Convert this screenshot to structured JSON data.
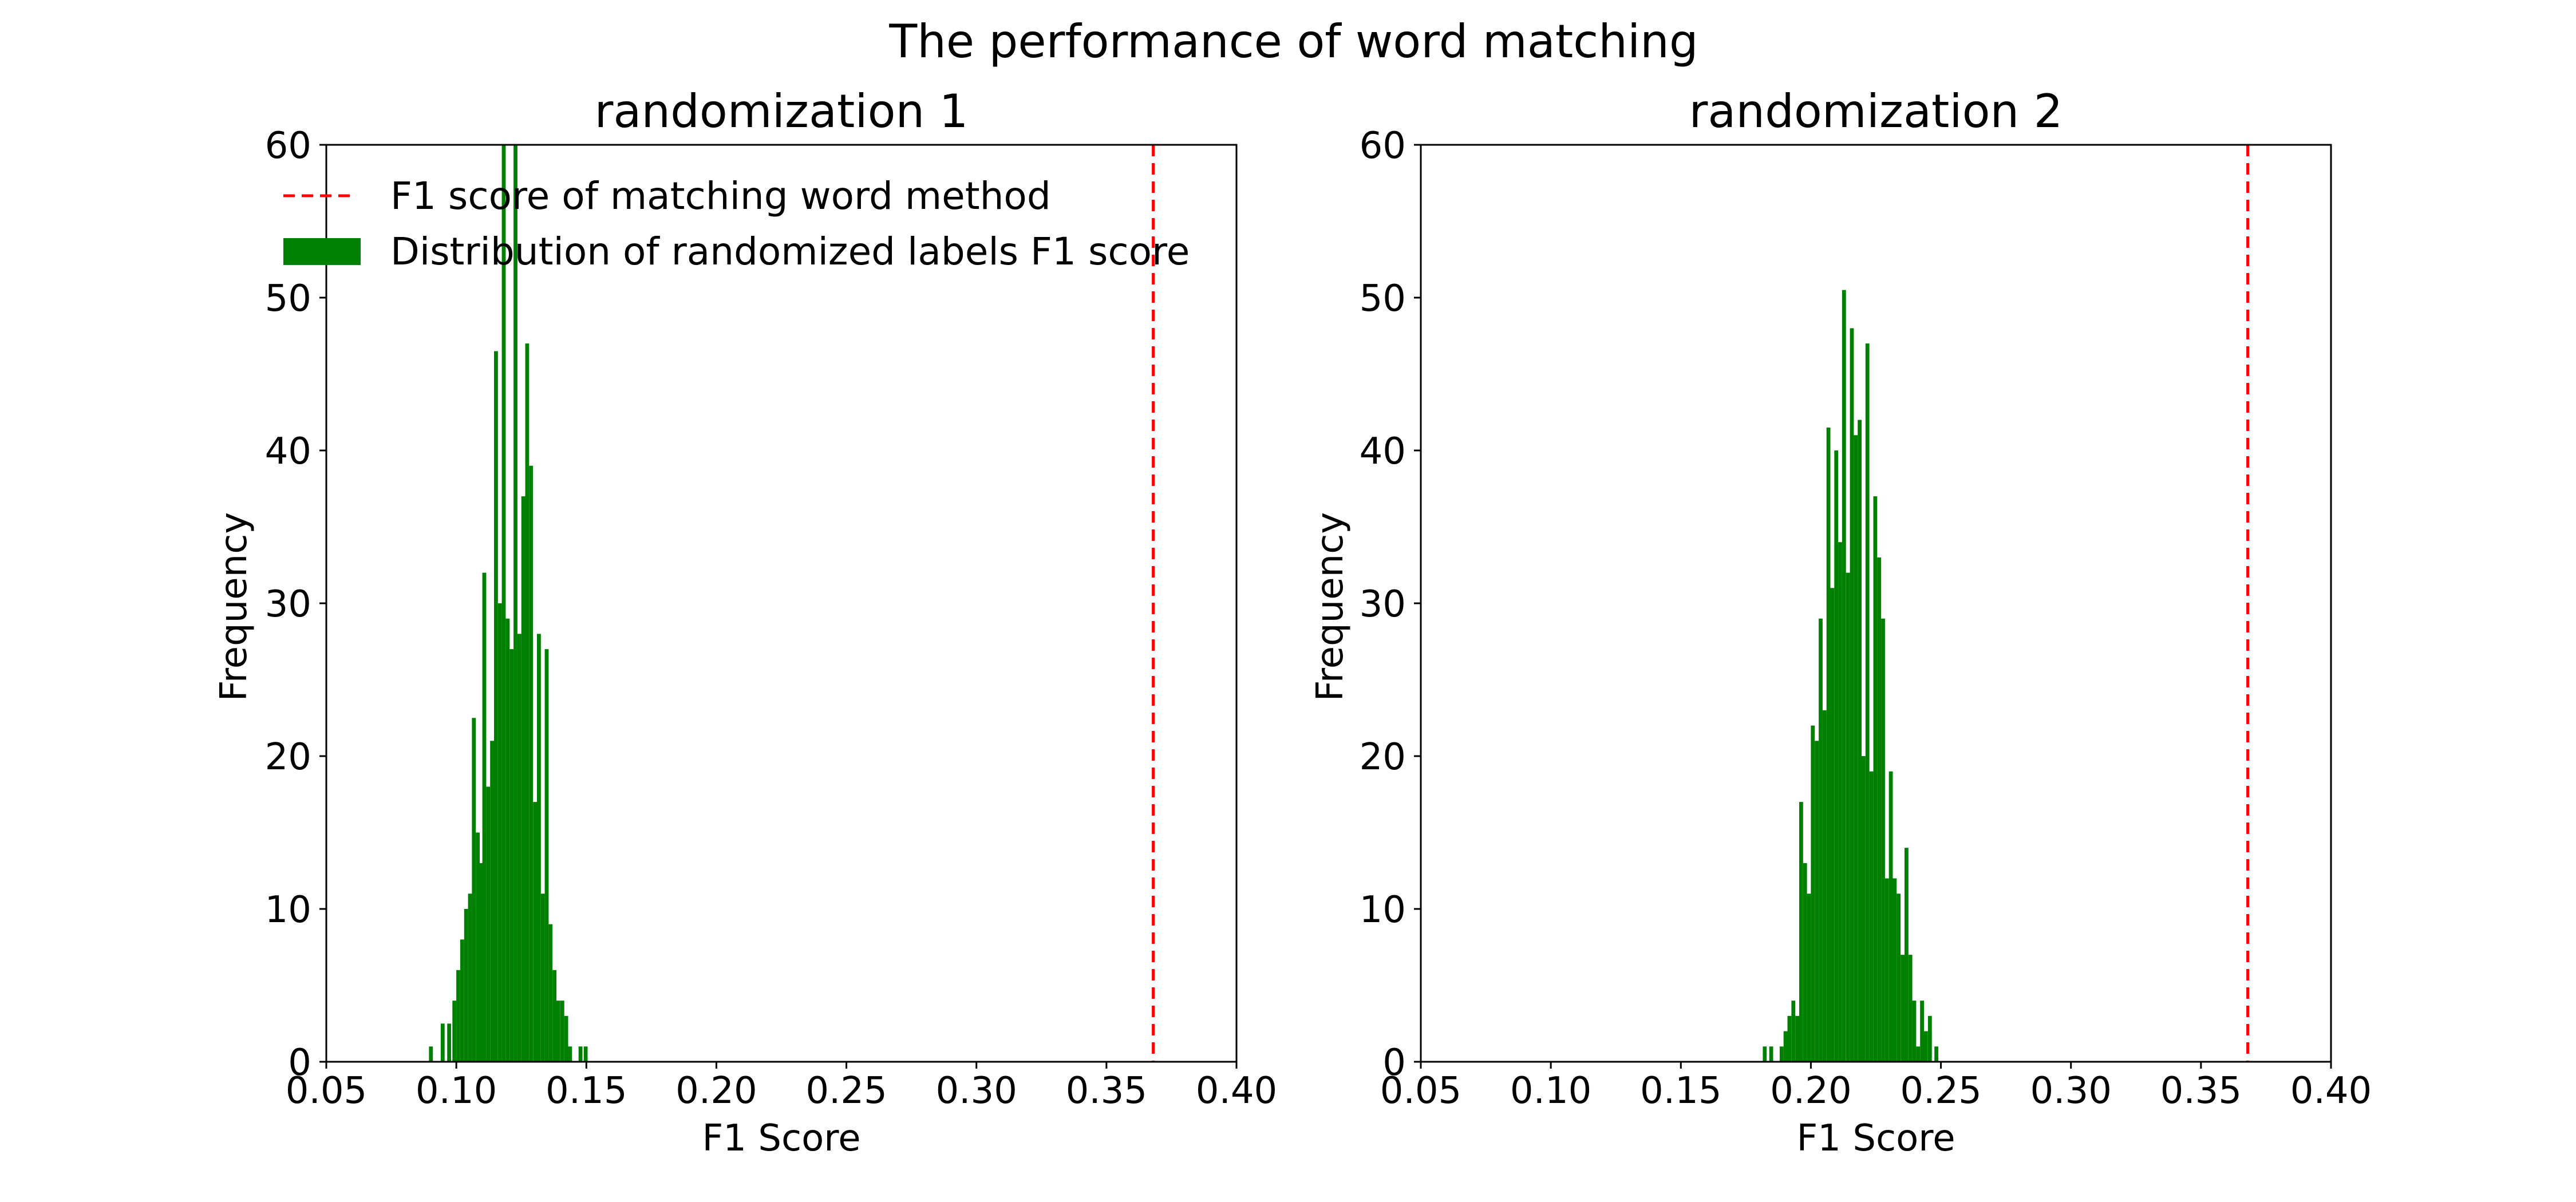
{
  "figure_title": "The performance of word matching",
  "colors": {
    "bars": "#008000",
    "threshold": "#ff0000",
    "axes": "#000000"
  },
  "legend": {
    "location": "upper-left",
    "entries": [
      {
        "label": "F1 score of matching word method",
        "kind": "dashed-line"
      },
      {
        "label": "Distribution of randomized labels F1 score",
        "kind": "patch"
      }
    ]
  },
  "chart_data": [
    {
      "type": "histogram",
      "title": "randomization 1",
      "xlabel": "F1 Score",
      "ylabel": "Frequency",
      "xlim": [
        0.05,
        0.4
      ],
      "ylim": [
        0,
        60
      ],
      "xticks": [
        0.05,
        0.1,
        0.15,
        0.2,
        0.25,
        0.3,
        0.35,
        0.4
      ],
      "xtick_labels": [
        "0.05",
        "0.10",
        "0.15",
        "0.20",
        "0.25",
        "0.30",
        "0.35",
        "0.40"
      ],
      "yticks": [
        0,
        10,
        20,
        30,
        40,
        50,
        60
      ],
      "ytick_labels": [
        "0",
        "10",
        "20",
        "30",
        "40",
        "50",
        "60"
      ],
      "threshold": 0.368,
      "bin_width": 0.0015,
      "bins": [
        [
          0.0895,
          1
        ],
        [
          0.094,
          2.5
        ],
        [
          0.0965,
          2.5
        ],
        [
          0.0985,
          4
        ],
        [
          0.1,
          6
        ],
        [
          0.1015,
          8
        ],
        [
          0.103,
          10
        ],
        [
          0.1045,
          11
        ],
        [
          0.106,
          22.5
        ],
        [
          0.1075,
          15
        ],
        [
          0.109,
          13
        ],
        [
          0.11,
          32
        ],
        [
          0.1115,
          18
        ],
        [
          0.113,
          21
        ],
        [
          0.1145,
          46.5
        ],
        [
          0.116,
          30
        ],
        [
          0.1175,
          60
        ],
        [
          0.119,
          29
        ],
        [
          0.1205,
          27
        ],
        [
          0.122,
          60
        ],
        [
          0.1235,
          28
        ],
        [
          0.125,
          37
        ],
        [
          0.1265,
          47
        ],
        [
          0.128,
          39
        ],
        [
          0.1295,
          17
        ],
        [
          0.131,
          28
        ],
        [
          0.1325,
          11
        ],
        [
          0.134,
          27
        ],
        [
          0.1355,
          9
        ],
        [
          0.137,
          6
        ],
        [
          0.1385,
          4
        ],
        [
          0.14,
          4
        ],
        [
          0.1415,
          3
        ],
        [
          0.143,
          1
        ],
        [
          0.147,
          1
        ],
        [
          0.149,
          1
        ]
      ]
    },
    {
      "type": "histogram",
      "title": "randomization 2",
      "xlabel": "F1 Score",
      "ylabel": "Frequency",
      "xlim": [
        0.05,
        0.4
      ],
      "ylim": [
        0,
        60
      ],
      "xticks": [
        0.05,
        0.1,
        0.15,
        0.2,
        0.25,
        0.3,
        0.35,
        0.4
      ],
      "xtick_labels": [
        "0.05",
        "0.10",
        "0.15",
        "0.20",
        "0.25",
        "0.30",
        "0.35",
        "0.40"
      ],
      "yticks": [
        0,
        10,
        20,
        30,
        40,
        50,
        60
      ],
      "ytick_labels": [
        "0",
        "10",
        "20",
        "30",
        "40",
        "50",
        "60"
      ],
      "threshold": 0.368,
      "bin_width": 0.0015,
      "bins": [
        [
          0.1815,
          1
        ],
        [
          0.184,
          1
        ],
        [
          0.188,
          1
        ],
        [
          0.1895,
          2
        ],
        [
          0.191,
          3
        ],
        [
          0.1925,
          4
        ],
        [
          0.194,
          3
        ],
        [
          0.1955,
          17
        ],
        [
          0.197,
          13
        ],
        [
          0.1985,
          11
        ],
        [
          0.2,
          22
        ],
        [
          0.2015,
          21
        ],
        [
          0.203,
          29
        ],
        [
          0.2045,
          23
        ],
        [
          0.206,
          41.5
        ],
        [
          0.2075,
          31
        ],
        [
          0.209,
          40
        ],
        [
          0.2105,
          34
        ],
        [
          0.212,
          50.5
        ],
        [
          0.2135,
          32
        ],
        [
          0.215,
          48
        ],
        [
          0.2165,
          41
        ],
        [
          0.218,
          42
        ],
        [
          0.2195,
          20
        ],
        [
          0.221,
          47
        ],
        [
          0.2225,
          19
        ],
        [
          0.224,
          37
        ],
        [
          0.2255,
          33
        ],
        [
          0.227,
          29
        ],
        [
          0.2285,
          12
        ],
        [
          0.23,
          19
        ],
        [
          0.2315,
          12
        ],
        [
          0.233,
          11
        ],
        [
          0.2345,
          7
        ],
        [
          0.236,
          14
        ],
        [
          0.2375,
          7
        ],
        [
          0.239,
          4
        ],
        [
          0.2405,
          1
        ],
        [
          0.242,
          4
        ],
        [
          0.2435,
          2
        ],
        [
          0.245,
          3
        ],
        [
          0.2475,
          1
        ]
      ]
    }
  ]
}
